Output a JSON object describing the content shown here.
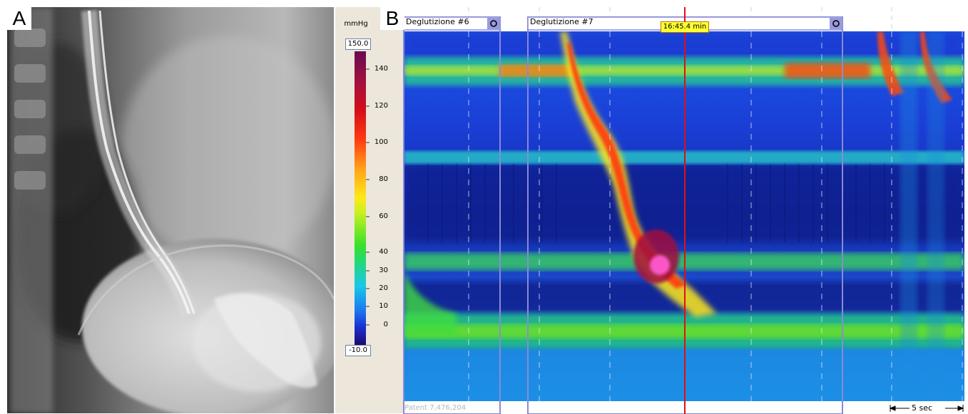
{
  "panels": {
    "left_label": "A",
    "right_label": "B"
  },
  "manometry": {
    "swallows": [
      {
        "label": "Deglutizione #6"
      },
      {
        "label": "Deglutizione #7"
      }
    ],
    "cursor_time": "16:45.4 min",
    "colorbar": {
      "unit": "mmHg",
      "max_label": "150.0",
      "min_label": "-10.0",
      "ticks": [
        "140",
        "120",
        "100",
        "80",
        "60",
        "40",
        "30",
        "20",
        "10",
        "0"
      ]
    },
    "footer": "Patent 7,476,204",
    "scale_bar": "5 sec"
  },
  "colors": {
    "background_plot": "#1a3fd6",
    "cursor": "#e01010",
    "swallow_box": "#8a8ad6",
    "time_badge": "#ffff33"
  }
}
